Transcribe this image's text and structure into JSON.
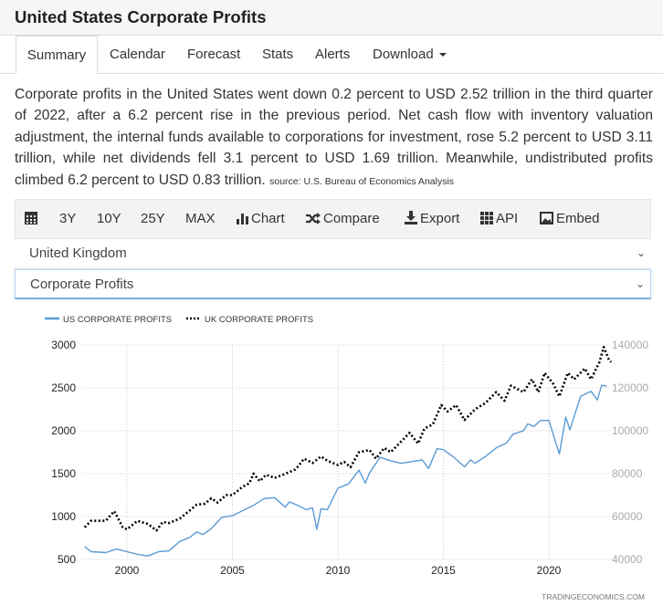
{
  "header": {
    "title": "United States Corporate Profits"
  },
  "tabs": [
    {
      "label": "Summary"
    },
    {
      "label": "Calendar"
    },
    {
      "label": "Forecast"
    },
    {
      "label": "Stats"
    },
    {
      "label": "Alerts"
    },
    {
      "label": "Download"
    }
  ],
  "summary": {
    "text": "Corporate profits in the United States went down 0.2 percent to USD 2.52 trillion in the third quarter of 2022, after a 6.2 percent rise in the previous period. Net cash flow with inventory valuation adjustment, the internal funds available to corporations for investment, rose 5.2 percent to USD 3.11 trillion, while net dividends fell 3.1 percent to USD 1.69 trillion. Meanwhile, undistributed profits climbed 6.2 percent to USD 0.83 trillion.",
    "source": "source: U.S. Bureau of Economics Analysis"
  },
  "toolbar": {
    "items": [
      {
        "label": "3Y"
      },
      {
        "label": "10Y"
      },
      {
        "label": "25Y"
      },
      {
        "label": "MAX"
      },
      {
        "label": "Chart",
        "icon": "bar-chart-icon"
      },
      {
        "label": "Compare",
        "icon": "shuffle-icon"
      },
      {
        "label": "Export",
        "icon": "download-icon"
      },
      {
        "label": "API",
        "icon": "grid-icon"
      },
      {
        "label": "Embed",
        "icon": "image-icon"
      }
    ]
  },
  "selects": {
    "country": "United Kingdom",
    "indicator": "Corporate Profits"
  },
  "colors": {
    "us": "#5b9bd5",
    "uk": "#000000"
  },
  "chart_data": {
    "type": "line",
    "watermark": "TRADINGECONOMICS.COM",
    "x_ticks": [
      "2000",
      "2005",
      "2010",
      "2015",
      "2020"
    ],
    "xlim": [
      1997.9,
      2023.0
    ],
    "y_left": {
      "ticks": [
        "500",
        "1000",
        "1500",
        "2000",
        "2500",
        "3000"
      ],
      "lim": [
        500,
        3000
      ]
    },
    "y_right": {
      "ticks": [
        "40000",
        "60000",
        "80000",
        "100000",
        "120000",
        "140000"
      ],
      "lim": [
        40000,
        140000
      ]
    },
    "series": [
      {
        "name": "US CORPORATE PROFITS",
        "axis": "left",
        "style": "solid",
        "points": [
          [
            1998,
            650
          ],
          [
            1998.3,
            590
          ],
          [
            1999,
            580
          ],
          [
            1999.5,
            620
          ],
          [
            2000,
            590
          ],
          [
            2000.5,
            560
          ],
          [
            2001,
            540
          ],
          [
            2001.5,
            590
          ],
          [
            2002,
            600
          ],
          [
            2002.5,
            710
          ],
          [
            2003,
            760
          ],
          [
            2003.3,
            820
          ],
          [
            2003.6,
            790
          ],
          [
            2004,
            860
          ],
          [
            2004.5,
            990
          ],
          [
            2005,
            1010
          ],
          [
            2005.5,
            1070
          ],
          [
            2006,
            1130
          ],
          [
            2006.5,
            1210
          ],
          [
            2007,
            1220
          ],
          [
            2007.5,
            1110
          ],
          [
            2007.7,
            1170
          ],
          [
            2008,
            1140
          ],
          [
            2008.5,
            1080
          ],
          [
            2008.8,
            1100
          ],
          [
            2009,
            850
          ],
          [
            2009.2,
            1090
          ],
          [
            2009.5,
            1080
          ],
          [
            2010,
            1330
          ],
          [
            2010.5,
            1380
          ],
          [
            2011,
            1540
          ],
          [
            2011.3,
            1390
          ],
          [
            2011.5,
            1510
          ],
          [
            2012,
            1690
          ],
          [
            2012.5,
            1650
          ],
          [
            2013,
            1620
          ],
          [
            2013.5,
            1640
          ],
          [
            2014,
            1660
          ],
          [
            2014.3,
            1560
          ],
          [
            2014.7,
            1790
          ],
          [
            2015,
            1780
          ],
          [
            2015.5,
            1690
          ],
          [
            2016,
            1580
          ],
          [
            2016.3,
            1660
          ],
          [
            2016.5,
            1620
          ],
          [
            2017,
            1700
          ],
          [
            2017.5,
            1800
          ],
          [
            2018,
            1860
          ],
          [
            2018.3,
            1960
          ],
          [
            2018.8,
            2000
          ],
          [
            2019,
            2080
          ],
          [
            2019.3,
            2050
          ],
          [
            2019.6,
            2120
          ],
          [
            2020,
            2120
          ],
          [
            2020.5,
            1730
          ],
          [
            2020.8,
            2160
          ],
          [
            2021,
            2010
          ],
          [
            2021.5,
            2400
          ],
          [
            2022,
            2460
          ],
          [
            2022.3,
            2360
          ],
          [
            2022.5,
            2530
          ],
          [
            2022.75,
            2520
          ]
        ]
      },
      {
        "name": "UK CORPORATE PROFITS",
        "axis": "right",
        "style": "dotted",
        "points": [
          [
            1998,
            55000
          ],
          [
            1998.3,
            58000
          ],
          [
            1999,
            58000
          ],
          [
            1999.4,
            62500
          ],
          [
            1999.8,
            55000
          ],
          [
            2000,
            54000
          ],
          [
            2000.5,
            58000
          ],
          [
            2001,
            56500
          ],
          [
            2001.4,
            53500
          ],
          [
            2001.7,
            57500
          ],
          [
            2002,
            57000
          ],
          [
            2002.5,
            59000
          ],
          [
            2003,
            63000
          ],
          [
            2003.3,
            65500
          ],
          [
            2003.7,
            66000
          ],
          [
            2004,
            68500
          ],
          [
            2004.3,
            66500
          ],
          [
            2004.7,
            70000
          ],
          [
            2005,
            70000
          ],
          [
            2005.5,
            74000
          ],
          [
            2005.8,
            75500
          ],
          [
            2006,
            80000
          ],
          [
            2006.3,
            76500
          ],
          [
            2006.6,
            79500
          ],
          [
            2007,
            78000
          ],
          [
            2007.4,
            79500
          ],
          [
            2008,
            82000
          ],
          [
            2008.4,
            87000
          ],
          [
            2008.8,
            85000
          ],
          [
            2009.2,
            88000
          ],
          [
            2009.5,
            86000
          ],
          [
            2010,
            84000
          ],
          [
            2010.3,
            85500
          ],
          [
            2010.6,
            83000
          ],
          [
            2011,
            90000
          ],
          [
            2011.5,
            91000
          ],
          [
            2011.8,
            87000
          ],
          [
            2012.2,
            92000
          ],
          [
            2012.5,
            90000
          ],
          [
            2013,
            95000
          ],
          [
            2013.4,
            99000
          ],
          [
            2013.8,
            94000
          ],
          [
            2014.1,
            101000
          ],
          [
            2014.5,
            103000
          ],
          [
            2014.9,
            112000
          ],
          [
            2015.2,
            109000
          ],
          [
            2015.6,
            112000
          ],
          [
            2016,
            105000
          ],
          [
            2016.5,
            110000
          ],
          [
            2017,
            113000
          ],
          [
            2017.5,
            118000
          ],
          [
            2017.9,
            114000
          ],
          [
            2018.2,
            121000
          ],
          [
            2018.8,
            118000
          ],
          [
            2019.2,
            124000
          ],
          [
            2019.5,
            118000
          ],
          [
            2019.8,
            127000
          ],
          [
            2020.2,
            122000
          ],
          [
            2020.5,
            116000
          ],
          [
            2020.9,
            127000
          ],
          [
            2021.2,
            124000
          ],
          [
            2021.7,
            129000
          ],
          [
            2022,
            124000
          ],
          [
            2022.4,
            132000
          ],
          [
            2022.6,
            139000
          ],
          [
            2022.85,
            133000
          ],
          [
            2022.95,
            132000
          ]
        ]
      }
    ]
  }
}
